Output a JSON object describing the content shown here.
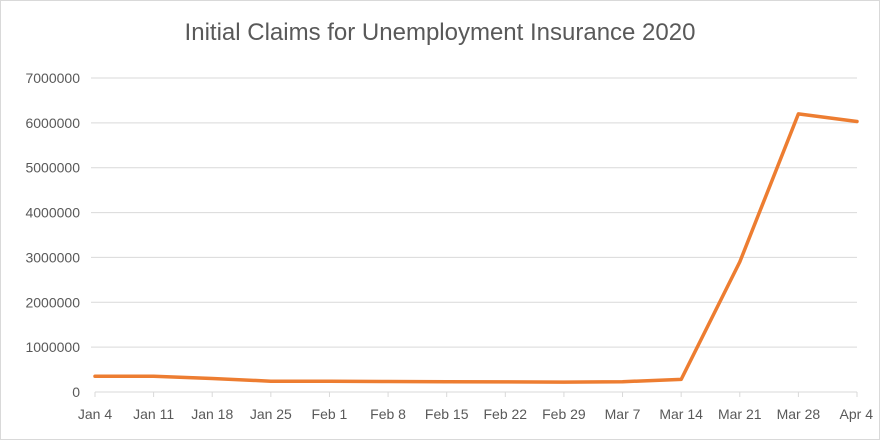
{
  "chart_data": {
    "type": "line",
    "title": "Initial Claims for Unemployment Insurance 2020",
    "xlabel": "",
    "ylabel": "",
    "categories": [
      "Jan 4",
      "Jan 11",
      "Jan 18",
      "Jan 25",
      "Feb 1",
      "Feb 8",
      "Feb 15",
      "Feb 22",
      "Feb 29",
      "Mar 7",
      "Mar 14",
      "Mar 21",
      "Mar 28",
      "Apr 4"
    ],
    "series": [
      {
        "values": [
          350000,
          350000,
          300000,
          240000,
          240000,
          235000,
          230000,
          225000,
          220000,
          230000,
          280000,
          2900000,
          6200000,
          6030000
        ],
        "color": "#ed7d31"
      }
    ],
    "y_ticks": [
      "0",
      "1000000",
      "2000000",
      "3000000",
      "4000000",
      "5000000",
      "6000000",
      "7000000"
    ],
    "ylim": [
      0,
      7000000
    ],
    "grid": true,
    "legend": false,
    "colors": {
      "line": "#ed7d31",
      "grid": "#d9d9d9",
      "text": "#595959"
    }
  }
}
